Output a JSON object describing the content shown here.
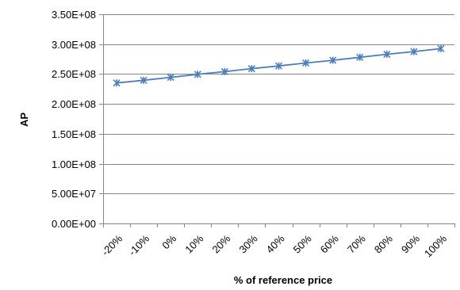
{
  "chart_data": {
    "type": "line",
    "title": "",
    "xlabel": "% of reference price",
    "ylabel": "AP",
    "categories": [
      "-20%",
      "-10%",
      "0%",
      "10%",
      "20%",
      "30%",
      "40%",
      "50%",
      "60%",
      "70%",
      "80%",
      "90%",
      "100%"
    ],
    "series": [
      {
        "marker": "asterisk",
        "color": "#4a7ebb",
        "values": [
          235000000,
          239500000,
          244500000,
          249500000,
          254000000,
          259000000,
          263500000,
          268500000,
          273000000,
          278000000,
          283000000,
          287500000,
          292500000
        ]
      }
    ],
    "ylim": [
      0,
      350000000
    ],
    "yticks": [
      0,
      50000000,
      100000000,
      150000000,
      200000000,
      250000000,
      300000000,
      350000000
    ],
    "ytick_labels": [
      "0.00E+00",
      "5.00E+07",
      "1.00E+08",
      "1.50E+08",
      "2.00E+08",
      "2.50E+08",
      "3.00E+08",
      "3.50E+08"
    ],
    "grid": true,
    "legend": "none"
  }
}
